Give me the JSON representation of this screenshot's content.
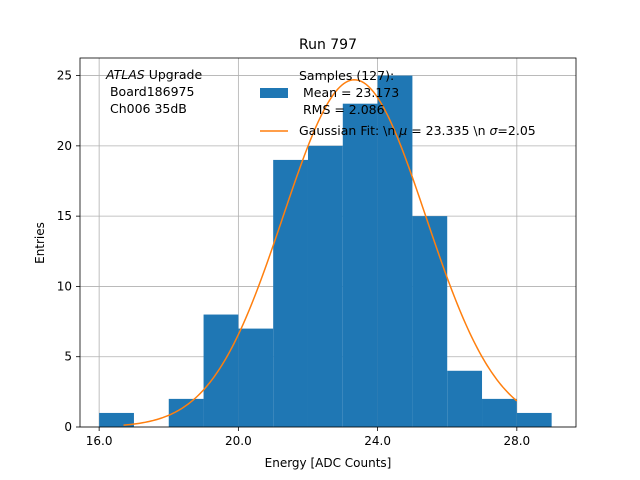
{
  "chart_data": {
    "type": "bar",
    "title": "Run 797",
    "xlabel": "Energy [ADC Counts]",
    "ylabel": "Entries",
    "xlim": [
      15.45,
      29.7
    ],
    "ylim": [
      0,
      26.25
    ],
    "xticks": [
      16.0,
      20.0,
      24.0,
      28.0
    ],
    "xtick_labels": [
      "16.0",
      "20.0",
      "24.0",
      "28.0"
    ],
    "yticks": [
      0,
      5,
      10,
      15,
      20,
      25
    ],
    "ytick_labels": [
      "0",
      "5",
      "10",
      "15",
      "20",
      "25"
    ],
    "grid": true,
    "bins": [
      {
        "x0": 16,
        "x1": 17,
        "count": 1
      },
      {
        "x0": 17,
        "x1": 18,
        "count": 0
      },
      {
        "x0": 18,
        "x1": 19,
        "count": 2
      },
      {
        "x0": 19,
        "x1": 20,
        "count": 8
      },
      {
        "x0": 20,
        "x1": 21,
        "count": 7
      },
      {
        "x0": 21,
        "x1": 22,
        "count": 19
      },
      {
        "x0": 22,
        "x1": 23,
        "count": 20
      },
      {
        "x0": 23,
        "x1": 24,
        "count": 23
      },
      {
        "x0": 24,
        "x1": 25,
        "count": 25
      },
      {
        "x0": 25,
        "x1": 26,
        "count": 15
      },
      {
        "x0": 26,
        "x1": 27,
        "count": 4
      },
      {
        "x0": 27,
        "x1": 28,
        "count": 2
      },
      {
        "x0": 28,
        "x1": 29,
        "count": 1
      }
    ],
    "series": [
      {
        "name": "Samples (127):\n Mean = 23.173\n RMS = 2.086",
        "type": "histogram",
        "color": "#1f77b4"
      },
      {
        "name": "Gaussian Fit: \\n μ = 23.335 \\n σ=2.05",
        "type": "line",
        "color": "#ff7f0e",
        "fit": {
          "amplitude": 24.7,
          "mu": 23.335,
          "sigma": 2.05,
          "x_range": [
            16.7,
            28.0
          ]
        }
      }
    ],
    "legend_position": "upper right",
    "annotation": {
      "line1_italic": "ATLAS",
      "line1_rest": " Upgrade",
      "line2": " Board186975",
      "line3": " Ch006 35dB"
    },
    "legend": {
      "hist_lines": [
        "Samples (127):",
        " Mean = 23.173",
        " RMS = 2.086"
      ],
      "fit_prefix": "Gaussian Fit: \\n ",
      "fit_mu_symbol": "μ",
      "fit_middle": " = 23.335 \\n ",
      "fit_sigma_symbol": "σ",
      "fit_suffix": "=2.05"
    }
  }
}
